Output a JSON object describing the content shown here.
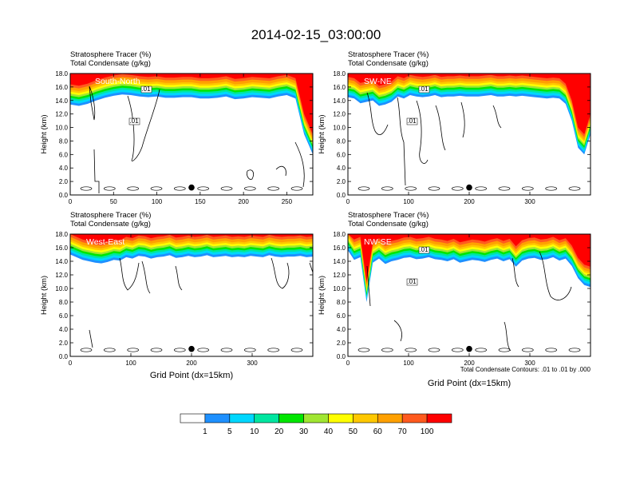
{
  "title": "2014-02-15_03:00:00",
  "colors": {
    "levels": [
      "#ffffff",
      "#1e90ff",
      "#00d7ff",
      "#00e6a0",
      "#00e600",
      "#a0e632",
      "#ffff00",
      "#ffc800",
      "#ffa000",
      "#ff5a1e",
      "#ff0000"
    ],
    "contour": "#000000",
    "marker": "#000000"
  },
  "colorbar": {
    "labels": [
      "1",
      "5",
      "10",
      "20",
      "30",
      "40",
      "50",
      "60",
      "70",
      "100"
    ]
  },
  "chart_data": [
    {
      "type": "contour",
      "panel": "South-North",
      "title_line1": "Stratosphere Tracer   (%)",
      "title_line2": "Total Condensate   (g/kg)",
      "ylabel": "Height (km)",
      "xlabel": "",
      "xlim": [
        0,
        280
      ],
      "ylim": [
        0,
        18
      ],
      "xticks": [
        0,
        50,
        100,
        150,
        200,
        250
      ],
      "yticks": [
        "0.0",
        "2.0",
        "4.0",
        "6.0",
        "8.0",
        "10.0",
        "12.0",
        "14.0",
        "16.0",
        "18.0"
      ],
      "tracer_base_km": [
        13.4,
        13.2,
        13.5,
        14.0,
        14.4,
        14.7,
        14.9,
        14.8,
        14.6,
        14.5,
        14.6,
        14.4,
        14.4,
        14.5,
        14.5,
        14.3,
        14.3,
        14.4,
        14.6,
        14.2,
        14.3,
        14.5,
        14.4,
        14.3,
        14.6,
        14.8,
        14.3,
        9.0,
        6.0
      ],
      "marker_x": 140,
      "marker_y_km": 1.1,
      "contour_labels": [
        ".01",
        ".01"
      ]
    },
    {
      "type": "contour",
      "panel": "SW-NE",
      "title_line1": "Stratosphere Tracer   (%)",
      "title_line2": "Total Condensate   (g/kg)",
      "ylabel": "Height (km)",
      "xlabel": "",
      "xlim": [
        0,
        400
      ],
      "ylim": [
        0,
        18
      ],
      "xticks": [
        0,
        100,
        200,
        300
      ],
      "yticks": [
        "0.0",
        "2.0",
        "4.0",
        "6.0",
        "8.0",
        "10.0",
        "12.0",
        "14.0",
        "16.0",
        "18.0"
      ],
      "tracer_base_km": [
        14.5,
        14.3,
        13.6,
        13.8,
        14.0,
        13.2,
        13.4,
        13.8,
        14.6,
        14.3,
        14.8,
        14.6,
        14.5,
        14.6,
        14.8,
        14.5,
        14.6,
        14.6,
        14.7,
        14.6,
        14.6,
        14.6,
        14.7,
        14.8,
        14.6,
        14.6,
        14.7,
        14.6,
        14.7,
        14.6,
        14.5,
        14.4,
        14.3,
        14.4,
        14.3,
        13.5,
        11.0,
        7.0,
        6.0,
        9.0
      ],
      "marker_x": 200,
      "marker_y_km": 1.1,
      "contour_labels": [
        ".01",
        ".01"
      ]
    },
    {
      "type": "contour",
      "panel": "West-East",
      "title_line1": "Stratosphere Tracer   (%)",
      "title_line2": "Total Condensate   (g/kg)",
      "ylabel": "Height (km)",
      "xlabel": "Grid Point (dx=15km)",
      "xlim": [
        0,
        400
      ],
      "ylim": [
        0,
        18
      ],
      "xticks": [
        0,
        100,
        200,
        300
      ],
      "yticks": [
        "0.0",
        "2.0",
        "4.0",
        "6.0",
        "8.0",
        "10.0",
        "12.0",
        "14.0",
        "16.0",
        "18.0"
      ],
      "tracer_base_km": [
        15.0,
        14.6,
        14.2,
        14.0,
        13.8,
        13.7,
        13.9,
        14.2,
        14.1,
        14.6,
        14.4,
        14.8,
        14.7,
        14.4,
        14.6,
        14.7,
        14.9,
        14.5,
        14.6,
        14.8,
        14.6,
        14.7,
        14.9,
        14.6,
        14.7,
        14.8,
        14.6,
        14.7,
        14.6,
        14.8,
        14.7,
        14.6,
        14.9,
        14.7,
        14.6,
        14.7,
        14.7,
        14.8,
        14.6,
        14.7
      ],
      "marker_x": 200,
      "marker_y_km": 1.1,
      "contour_labels": []
    },
    {
      "type": "contour",
      "panel": "NW-SE",
      "title_line1": "Stratosphere Tracer   (%)",
      "title_line2": "Total Condensate   (g/kg)",
      "ylabel": "Height (km)",
      "xlabel": "Grid Point (dx=15km)",
      "xlim": [
        0,
        400
      ],
      "ylim": [
        0,
        18
      ],
      "xticks": [
        0,
        100,
        200,
        300
      ],
      "yticks": [
        "0.0",
        "2.0",
        "4.0",
        "6.0",
        "8.0",
        "10.0",
        "12.0",
        "14.0",
        "16.0",
        "18.0"
      ],
      "tracer_base_km": [
        15.6,
        14.2,
        14.6,
        8.0,
        13.8,
        14.4,
        13.6,
        14.0,
        14.2,
        14.5,
        14.6,
        14.3,
        14.4,
        14.6,
        14.3,
        14.2,
        14.0,
        14.3,
        13.8,
        14.0,
        14.2,
        14.1,
        13.9,
        14.2,
        14.4,
        14.0,
        14.3,
        13.2,
        14.1,
        14.4,
        14.5,
        14.2,
        14.3,
        14.6,
        14.1,
        14.4,
        13.3,
        11.5,
        10.5,
        10.2
      ],
      "marker_x": 200,
      "marker_y_km": 1.1,
      "contour_labels": [
        ".01",
        ".01"
      ],
      "note": "Total Condensate Contours: .01 to .01 by .000"
    }
  ]
}
